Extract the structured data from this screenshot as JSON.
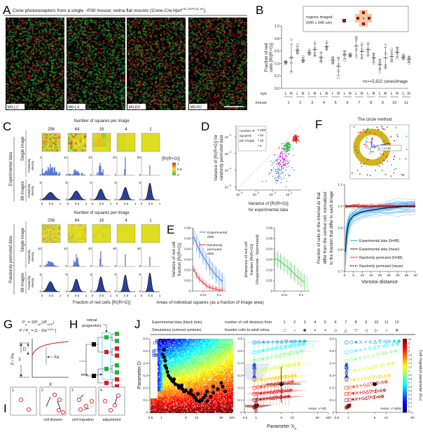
{
  "letters": {
    "a": "A",
    "b": "B",
    "c": "C",
    "d": "D",
    "e": "E",
    "f": "F",
    "g": "G",
    "h": "H",
    "i": "I",
    "j": "J"
  },
  "colors": {
    "red": "#e8141e",
    "green": "#1fb43c",
    "blue": "#2f6fe0",
    "magenta": "#e020e0",
    "navy": "#1f3a8a",
    "dark_red": "#9b1010"
  },
  "panel_a": {
    "title": "Cone photoreceptors from a single ~P30 mouse; retina flat mounts ",
    "genotype": "(Cone-Cre;Hprt",
    "genotype_sup": "LSL-GFP/LSL-tdT",
    "genotype_close": ")",
    "images": [
      "M9-L2",
      "M9-L4",
      "M9-R3",
      "M9-R2"
    ]
  },
  "panel_b": {
    "legend_line1": "regions imaged",
    "legend_line2": "(640 x 640 um)",
    "ylabel_1": "Fraction of red",
    "ylabel_2": "cells [R/(R+G)]",
    "yticks": [
      "0.0",
      "0.2",
      "0.4",
      "0.6",
      "0.8",
      "1.0"
    ],
    "annotation": "<n>=5,922 cones/image",
    "eye_label": "eye",
    "mouse_label": "mouse",
    "eyes": [
      "L",
      "R"
    ],
    "mice": [
      "1",
      "2",
      "3",
      "4",
      "5",
      "6",
      "7",
      "8",
      "9",
      "10",
      "11"
    ]
  },
  "panel_c": {
    "title": "Number of squares per image",
    "squares": [
      "256",
      "64",
      "16",
      "4",
      "1"
    ],
    "block_labels": [
      "Experimental data",
      "Randomly permuted data"
    ],
    "row_single": "Single image",
    "row_pooled": "88 images",
    "ylabel_1": "Probability",
    "ylabel_2": "density",
    "x_ticks": [
      "0",
      "0.5",
      "1"
    ],
    "xlabel": "Fraction of red cells [R/(R+G)]",
    "colorbar_title": "[R/(R+G)]",
    "colorbar_ticks": [
      "1",
      "0.5",
      "0"
    ],
    "single_ymax": {
      "experimental": [
        "4",
        "10",
        "10",
        "20",
        "50"
      ],
      "permuted": [
        "10",
        "10",
        "20",
        "40",
        "50"
      ]
    },
    "pooled_ymax": "5"
  },
  "panel_d": {
    "ylabel_1": "Variance of [R/(R+G)] for",
    "ylabel_2": "randomly permuted data",
    "xlabel_1": "Variance of [R/(R+G)]",
    "xlabel_2": "for experimental data",
    "legend_title": [
      "number of",
      "squares",
      "per image"
    ],
    "tick_base": "10",
    "tick_exponents": [
      "-5",
      "-4",
      "-3",
      "-2"
    ]
  },
  "panel_e": {
    "legend": {
      "experimental_1": "Experimental",
      "experimental_2": "data",
      "permuted_1": "Randomly",
      "permuted_2": "permuted",
      "permuted_3": "data"
    },
    "left_ylabel": [
      "Variance of red cell",
      "fraction [R/(R+G)]"
    ],
    "right_ylabel": [
      "ΔVariance of red cell",
      "fraction [R/(R+G)]",
      "(Vexperimental - Vpermuted)"
    ],
    "yticks": [
      "0",
      "0.01",
      "0.02",
      "0.03",
      "0.04",
      "0.05",
      "0.06"
    ],
    "xticks": [
      "0.01",
      "0.1"
    ],
    "xlabel": "Areas of individual squares (as a fraction of image area)"
  },
  "panel_f": {
    "title": "The circle method",
    "ri_label": "rᵢ",
    "rj_label": "rⱼ = rᵢ+Δr",
    "ylabel": [
      "Fraction of cells in the interval Δr that",
      "differ from the central cell, normalized",
      "to the fraction that differ in each image"
    ],
    "xlabel": "Voronoi distance",
    "yticks": [
      "0.7",
      "0.8",
      "0.9",
      "1.0",
      "1.1"
    ],
    "xticks": [
      "0",
      "5",
      "10",
      "15",
      "20",
      "25",
      "30",
      "35",
      "40"
    ],
    "legend": [
      "Experimental data (N=88)",
      "Experimental data (mean)",
      "Randomly permuted (N=88)",
      "Randomly permuted (mean)"
    ]
  },
  "panel_g": {
    "formula_1": [
      [
        "P",
        ""
      ],
      [
        "o",
        "sub"
      ],
      [
        " = 2(P",
        ""
      ],
      [
        "tdT",
        "sub"
      ],
      [
        ")(P",
        ""
      ],
      [
        "GFP",
        "sub"
      ],
      [
        ")",
        ""
      ]
    ],
    "formula_2": [
      [
        "P / P",
        ""
      ],
      [
        "o",
        "sub"
      ],
      [
        " = [1 - De",
        ""
      ],
      [
        "-X/Xo",
        "sup"
      ],
      [
        " ]",
        ""
      ]
    ],
    "ylabel": "P / Po",
    "one": "1",
    "d_label": "D",
    "x0_label": "Xo",
    "xlabel": "X"
  },
  "panel_h": {
    "progenitors_1": "retinal",
    "progenitors_2": "progenitors",
    "time": "time"
  },
  "panel_i": {
    "steps": [
      "1",
      "2",
      "3",
      "4"
    ],
    "captions": [
      "",
      "cell division",
      "cell migration",
      "adjustment"
    ]
  },
  "panel_j": {
    "header_left_1": "Experimental data (black dots)",
    "header_left_2": "Simulations (colored symbols)",
    "header_mid_1": "number of cell divisions from",
    "header_mid_2": "founder cells to adult retina",
    "divisions": [
      "1",
      "2",
      "3",
      "4",
      "5",
      "6",
      "7",
      "8",
      "9",
      "10",
      "11",
      "12"
    ],
    "symbols": [
      "□",
      "○",
      "✱",
      "×",
      "+",
      "◇",
      "△",
      "▽",
      "◁",
      "▷",
      "☆",
      "✡"
    ],
    "ylabel": "Parameter D",
    "xlabel": "Parameter X",
    "xlabel_sub": "o",
    "yticks": [
      "0",
      "0.1",
      "0.2",
      "0.3",
      "0.4",
      "0.5",
      "0.6"
    ],
    "xticks_100": [
      "0.5",
      "1",
      "5",
      "10",
      "50",
      "100"
    ],
    "xticks_50": [
      "0.5",
      "1",
      "5",
      "10",
      "50"
    ],
    "sd_note": "mean +/-SD",
    "sem_note": "mean +/-SEM",
    "colorbar_label": "Cell migration parameter (K",
    "colorbar_label_sub": "m",
    "colorbar_label_end": ")",
    "colorbar_ticks": [
      "10",
      "5",
      "3",
      "2",
      "1.8",
      "1.6",
      "1.4",
      "1.2",
      "1",
      "0.9",
      "0.8",
      "0.7",
      "0.6",
      "0.5",
      "0.4",
      "0.3",
      "0.2",
      "0.1",
      "0"
    ]
  },
  "chart_data": [
    {
      "panel": "B",
      "type": "scatter",
      "ylabel": "Fraction of red cells [R/(R+G)]",
      "ylim": [
        0,
        1
      ],
      "groups": [
        {
          "mouse": "1",
          "eye": "L",
          "mean": 0.42,
          "points": [
            0.43,
            0.41,
            0.39,
            0.42
          ]
        },
        {
          "mouse": "1",
          "eye": "R",
          "mean": 0.49,
          "points": [
            0.78,
            0.41,
            0.26,
            0.5
          ]
        },
        {
          "mouse": "2",
          "eye": "L",
          "mean": 0.61,
          "points": [
            0.7,
            0.62,
            0.59,
            0.57
          ]
        },
        {
          "mouse": "2",
          "eye": "R",
          "mean": 0.45,
          "points": [
            0.51,
            0.45,
            0.44,
            0.44
          ]
        },
        {
          "mouse": "3",
          "eye": "L",
          "mean": 0.57,
          "points": [
            0.62,
            0.59,
            0.56,
            0.55
          ]
        },
        {
          "mouse": "3",
          "eye": "R",
          "mean": 0.62,
          "points": [
            0.74,
            0.64,
            0.56,
            0.52
          ]
        },
        {
          "mouse": "4",
          "eye": "L",
          "mean": 0.5,
          "points": [
            0.58,
            0.49,
            0.45,
            0.42
          ]
        },
        {
          "mouse": "4",
          "eye": "R",
          "mean": 0.67,
          "points": [
            0.75,
            0.67,
            0.64,
            0.63
          ]
        },
        {
          "mouse": "5",
          "eye": "L",
          "mean": 0.45,
          "points": [
            0.5,
            0.47,
            0.42,
            0.4
          ]
        },
        {
          "mouse": "5",
          "eye": "R",
          "mean": 0.35,
          "points": [
            0.49,
            0.38,
            0.28,
            0.17
          ]
        },
        {
          "mouse": "6",
          "eye": "L",
          "mean": 0.54,
          "points": [
            0.59,
            0.55,
            0.53,
            0.45
          ]
        },
        {
          "mouse": "6",
          "eye": "R",
          "mean": 0.53,
          "points": [
            0.56,
            0.54,
            0.52,
            0.51
          ]
        },
        {
          "mouse": "7",
          "eye": "L",
          "mean": 0.68,
          "points": [
            0.81,
            0.78,
            0.62,
            0.5
          ]
        },
        {
          "mouse": "7",
          "eye": "R",
          "mean": 0.59,
          "points": [
            0.72,
            0.62,
            0.53,
            0.48
          ]
        },
        {
          "mouse": "8",
          "eye": "L",
          "mean": 0.62,
          "points": [
            0.73,
            0.63,
            0.58,
            0.52
          ]
        },
        {
          "mouse": "8",
          "eye": "R",
          "mean": 0.49,
          "points": [
            0.55,
            0.51,
            0.46,
            0.4
          ]
        },
        {
          "mouse": "9",
          "eye": "L",
          "mean": 0.38,
          "points": [
            0.44,
            0.4,
            0.32,
            0.26
          ]
        },
        {
          "mouse": "9",
          "eye": "R",
          "mean": 0.49,
          "points": [
            0.7,
            0.56,
            0.37,
            0.34
          ]
        },
        {
          "mouse": "10",
          "eye": "L",
          "mean": 0.51,
          "points": [
            0.63,
            0.55,
            0.47,
            0.44
          ]
        },
        {
          "mouse": "10",
          "eye": "R",
          "mean": 0.58,
          "points": [
            0.65,
            0.61,
            0.56,
            0.48
          ]
        },
        {
          "mouse": "11",
          "eye": "L",
          "mean": 0.5,
          "points": [
            0.54,
            0.51,
            0.49,
            0.47
          ]
        },
        {
          "mouse": "11",
          "eye": "R",
          "mean": 0.47,
          "points": [
            0.5,
            0.48,
            0.45,
            0.4
          ]
        }
      ]
    },
    {
      "panel": "C",
      "type": "bar",
      "squares": [
        256,
        64,
        16,
        4,
        1
      ],
      "heatmap_spread": {
        "experimental": [
          0.25,
          0.18,
          0.1,
          0.05,
          0
        ],
        "permuted": [
          0.15,
          0.08,
          0.03,
          0.01,
          0
        ]
      },
      "pooled_sd": {
        "experimental": [
          0.2,
          0.17,
          0.14,
          0.12,
          0.09
        ],
        "permuted": [
          0.15,
          0.12,
          0.1,
          0.09,
          0.08
        ]
      },
      "mean_fraction": 0.46,
      "xlim": [
        0,
        1
      ]
    },
    {
      "panel": "D",
      "type": "scatter",
      "log_axes": true,
      "xlim_log10": [
        -5.2,
        -1.3
      ],
      "ylim_log10": [
        -5.2,
        -1.3
      ],
      "series": [
        {
          "name": "256",
          "color": "#e8141e",
          "center_log10": [
            -1.6,
            -2.1
          ],
          "spread_log10": [
            0.08,
            0.1
          ],
          "n": 88
        },
        {
          "name": "64",
          "color": "#1fb43c",
          "center_log10": [
            -2.1,
            -2.6
          ],
          "spread_log10": [
            0.13,
            0.15
          ],
          "n": 88
        },
        {
          "name": "16",
          "color": "#e020e0",
          "center_log10": [
            -2.4,
            -3.3
          ],
          "spread_log10": [
            0.2,
            0.3
          ],
          "n": 88
        },
        {
          "name": "4",
          "color": "#2f6fe0",
          "center_log10": [
            -2.6,
            -4.0
          ],
          "spread_log10": [
            0.45,
            0.4
          ],
          "n": 88
        }
      ]
    },
    {
      "panel": "E",
      "type": "line",
      "x": [
        0.0025,
        0.004,
        0.006,
        0.01,
        0.016,
        0.025,
        0.04,
        0.063,
        0.1,
        0.16
      ],
      "series": [
        {
          "name": "Experimental data",
          "color": "#2f6fe0",
          "values": [
            0.052,
            0.045,
            0.039,
            0.033,
            0.028,
            0.023,
            0.019,
            0.015,
            0.012,
            0.009
          ],
          "err": 0.008
        },
        {
          "name": "Randomly permuted data",
          "color": "#e8141e",
          "values": [
            0.021,
            0.015,
            0.011,
            0.008,
            0.005,
            0.0035,
            0.0025,
            0.0017,
            0.0012,
            0.0009
          ],
          "err": 0.003
        },
        {
          "name": "Difference",
          "color": "#3fbf3f",
          "values": [
            0.031,
            0.03,
            0.028,
            0.025,
            0.023,
            0.0195,
            0.0165,
            0.0133,
            0.0108,
            0.0081
          ],
          "err": 0.008
        }
      ],
      "ylim": [
        0,
        0.06
      ]
    },
    {
      "panel": "F",
      "type": "line",
      "x": [
        0.5,
        1,
        2,
        3,
        5,
        8,
        10,
        15,
        20,
        25,
        30,
        35,
        40
      ],
      "series": [
        {
          "name": "Experimental data (mean)",
          "color": "#000000",
          "values": [
            0.79,
            0.86,
            0.91,
            0.935,
            0.955,
            0.968,
            0.974,
            0.982,
            0.988,
            0.993,
            0.997,
            0.999,
            1.0
          ]
        },
        {
          "name": "Randomly permuted (mean)",
          "color": "#000000",
          "dashed": true,
          "values": [
            1,
            1,
            1,
            1,
            1,
            1,
            1,
            1,
            1,
            1,
            1,
            1,
            1
          ]
        }
      ],
      "experimental_spread": 0.04,
      "n_images": 88,
      "xlim": [
        0,
        40
      ],
      "ylim": [
        0.7,
        1.1
      ]
    },
    {
      "panel": "J",
      "type": "scatter",
      "xlim": [
        0.5,
        100
      ],
      "ylim": [
        0,
        0.6
      ],
      "x_log": true,
      "experimental_points": [
        [
          1.2,
          0.51
        ],
        [
          1.1,
          0.47
        ],
        [
          1.2,
          0.45
        ],
        [
          1.3,
          0.42
        ],
        [
          1.3,
          0.38
        ],
        [
          1.4,
          0.36
        ],
        [
          1.5,
          0.33
        ],
        [
          1.6,
          0.3
        ],
        [
          1.8,
          0.28
        ],
        [
          2,
          0.26
        ],
        [
          2.2,
          0.25
        ],
        [
          2.3,
          0.27
        ],
        [
          2.5,
          0.23
        ],
        [
          3,
          0.22
        ],
        [
          3.2,
          0.2
        ],
        [
          3.5,
          0.21
        ],
        [
          3.8,
          0.22
        ],
        [
          4,
          0.19
        ],
        [
          4.5,
          0.17
        ],
        [
          5,
          0.18
        ],
        [
          6,
          0.16
        ],
        [
          7,
          0.15
        ],
        [
          7,
          0.18
        ],
        [
          8,
          0.14
        ],
        [
          9,
          0.12
        ],
        [
          10,
          0.1
        ],
        [
          11,
          0.15
        ],
        [
          12,
          0.09
        ],
        [
          14,
          0.1
        ],
        [
          16,
          0.12
        ],
        [
          18,
          0.14
        ],
        [
          20,
          0.09
        ],
        [
          20,
          0.17
        ],
        [
          25,
          0.13
        ],
        [
          30,
          0.16
        ],
        [
          30,
          0.21
        ],
        [
          40,
          0.19
        ],
        [
          50,
          0.24
        ],
        [
          55,
          0.21
        ],
        [
          65,
          0.17
        ]
      ],
      "experimental_mean": {
        "x": 5,
        "d": 0.23,
        "sd_x": [
          1.9,
          17
        ],
        "sd_d": [
          0.08,
          0.37
        ]
      },
      "simulation_rows": [
        {
          "km": 0.3,
          "d_first": 0.27,
          "d_last": 0.39,
          "x_last": 0.9
        },
        {
          "km": 0.5,
          "d_first": 0.57,
          "d_last": 0.58,
          "x_last": 22
        },
        {
          "km": 0.7,
          "d_first": 0.49,
          "d_last": 0.56,
          "x_last": 20
        },
        {
          "km": 0.9,
          "d_first": 0.42,
          "d_last": 0.5,
          "x_last": 18
        },
        {
          "km": 1.1,
          "d_first": 0.33,
          "d_last": 0.4,
          "x_last": 15
        },
        {
          "km": 1.4,
          "d_first": 0.26,
          "d_last": 0.3,
          "x_last": 12
        },
        {
          "km": 2,
          "d_first": 0.2,
          "d_last": 0.25,
          "x_last": 10
        },
        {
          "km": 3,
          "d_first": 0.15,
          "d_last": 0.18,
          "x_last": 9
        },
        {
          "km": 5,
          "d_first": 0.1,
          "d_last": 0.13,
          "x_last": 8
        },
        {
          "km": 10,
          "d_first": 0.04,
          "d_last": 0.06,
          "x_last": 1.1
        }
      ]
    }
  ]
}
